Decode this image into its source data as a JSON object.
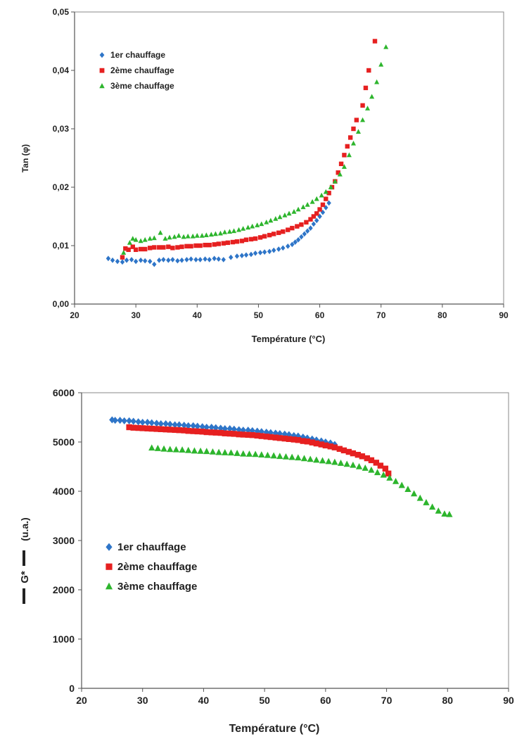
{
  "colors": {
    "series1": "#2E75C8",
    "series2": "#E62020",
    "series3": "#2DB52D"
  },
  "chart_data": [
    {
      "type": "scatter",
      "xlabel": "Température (°C)",
      "ylabel": "Tan (φ)",
      "xlim": [
        20,
        90
      ],
      "ylim": [
        0,
        0.05
      ],
      "x_ticks": [
        "20",
        "30",
        "40",
        "50",
        "60",
        "70",
        "80",
        "90"
      ],
      "y_ticks": [
        "0,00",
        "0,01",
        "0,02",
        "0,03",
        "0,04",
        "0,05"
      ],
      "grid": false,
      "legend_position": "top-left",
      "series": [
        {
          "name": "1er chauffage",
          "marker": "diamond",
          "x": [
            25.5,
            26.2,
            27.0,
            27.8,
            28.5,
            29.3,
            30.0,
            30.8,
            31.5,
            32.3,
            33.0,
            33.8,
            34.5,
            35.3,
            36.0,
            36.8,
            37.5,
            38.3,
            39.0,
            39.8,
            40.5,
            41.3,
            42.0,
            42.8,
            43.5,
            44.3,
            45.5,
            46.5,
            47.3,
            48.0,
            48.8,
            49.5,
            50.3,
            51.0,
            51.8,
            52.5,
            53.3,
            54.0,
            54.8,
            55.5,
            56.0,
            56.5,
            57.0,
            57.5,
            58.0,
            58.5,
            59.0,
            59.5,
            60.0,
            60.5,
            61.0,
            61.5
          ],
          "y": [
            0.0078,
            0.0075,
            0.0073,
            0.0072,
            0.0075,
            0.0076,
            0.0073,
            0.0075,
            0.0074,
            0.0073,
            0.0068,
            0.0075,
            0.0076,
            0.0075,
            0.0076,
            0.0074,
            0.0075,
            0.0076,
            0.0077,
            0.0076,
            0.0076,
            0.0077,
            0.0076,
            0.0078,
            0.0077,
            0.0076,
            0.008,
            0.0082,
            0.0083,
            0.0084,
            0.0085,
            0.0087,
            0.0088,
            0.0089,
            0.009,
            0.0092,
            0.0094,
            0.0096,
            0.0099,
            0.0102,
            0.0106,
            0.011,
            0.0115,
            0.012,
            0.0125,
            0.013,
            0.0137,
            0.0143,
            0.015,
            0.0157,
            0.0165,
            0.0173
          ]
        },
        {
          "name": "2ème chauffage",
          "marker": "square",
          "x": [
            27.8,
            28.3,
            28.8,
            29.5,
            30.0,
            30.8,
            31.5,
            32.3,
            33.0,
            33.8,
            34.5,
            35.3,
            36.0,
            36.8,
            37.5,
            38.3,
            39.0,
            39.8,
            40.5,
            41.3,
            42.0,
            42.8,
            43.5,
            44.3,
            45.0,
            45.8,
            46.5,
            47.3,
            48.0,
            48.8,
            49.5,
            50.3,
            51.0,
            51.8,
            52.5,
            53.3,
            54.0,
            54.8,
            55.5,
            56.3,
            57.0,
            57.8,
            58.5,
            59.0,
            59.5,
            60.0,
            60.5,
            61.0,
            61.5,
            62.0,
            62.5,
            63.0,
            63.5,
            64.0,
            64.5,
            65.0,
            65.5,
            66.0,
            67.0,
            67.5,
            68.0,
            69.0
          ],
          "y": [
            0.008,
            0.0095,
            0.0093,
            0.0098,
            0.0093,
            0.0094,
            0.0094,
            0.0096,
            0.0097,
            0.0097,
            0.0097,
            0.0098,
            0.0096,
            0.0097,
            0.0098,
            0.0099,
            0.0099,
            0.01,
            0.01,
            0.0101,
            0.0101,
            0.0102,
            0.0103,
            0.0104,
            0.0105,
            0.0106,
            0.0107,
            0.0108,
            0.011,
            0.0111,
            0.0112,
            0.0114,
            0.0116,
            0.0118,
            0.012,
            0.0122,
            0.0124,
            0.0127,
            0.013,
            0.0133,
            0.0136,
            0.014,
            0.0145,
            0.015,
            0.0155,
            0.0162,
            0.017,
            0.018,
            0.019,
            0.02,
            0.021,
            0.0225,
            0.024,
            0.0255,
            0.027,
            0.0285,
            0.03,
            0.0315,
            0.034,
            0.037,
            0.04,
            0.045
          ]
        },
        {
          "name": "3ème chauffage",
          "marker": "triangle",
          "x": [
            28.0,
            29.0,
            29.5,
            30.0,
            30.8,
            31.5,
            32.3,
            33.0,
            34.0,
            34.8,
            35.5,
            36.3,
            37.0,
            37.8,
            38.5,
            39.3,
            40.0,
            40.8,
            41.5,
            42.3,
            43.0,
            43.8,
            44.5,
            45.3,
            46.0,
            46.8,
            47.5,
            48.3,
            49.0,
            49.8,
            50.5,
            51.3,
            52.0,
            52.8,
            53.5,
            54.3,
            55.0,
            55.8,
            56.5,
            57.3,
            58.0,
            58.8,
            59.5,
            60.3,
            61.0,
            61.8,
            62.5,
            63.3,
            64.0,
            64.8,
            65.5,
            66.3,
            67.0,
            67.8,
            68.5,
            69.3,
            70.0,
            70.8
          ],
          "y": [
            0.0088,
            0.0105,
            0.0112,
            0.011,
            0.0108,
            0.011,
            0.0112,
            0.0113,
            0.0122,
            0.0112,
            0.0114,
            0.0115,
            0.0117,
            0.0115,
            0.0116,
            0.0116,
            0.0117,
            0.0117,
            0.0118,
            0.0119,
            0.012,
            0.0121,
            0.0123,
            0.0124,
            0.0125,
            0.0127,
            0.0129,
            0.0131,
            0.0133,
            0.0135,
            0.0137,
            0.014,
            0.0143,
            0.0146,
            0.0149,
            0.0152,
            0.0155,
            0.0158,
            0.0162,
            0.0166,
            0.017,
            0.0175,
            0.018,
            0.0186,
            0.0192,
            0.02,
            0.021,
            0.0222,
            0.0235,
            0.0255,
            0.0275,
            0.0295,
            0.0315,
            0.0335,
            0.0355,
            0.038,
            0.041,
            0.044
          ]
        }
      ]
    },
    {
      "type": "scatter",
      "xlabel": "Température (°C)",
      "ylabel": "G*",
      "ylabel_unit": "(u.a.)",
      "xlim": [
        20,
        90
      ],
      "ylim": [
        0,
        6000
      ],
      "x_ticks": [
        "20",
        "30",
        "40",
        "50",
        "60",
        "70",
        "80",
        "90"
      ],
      "y_ticks": [
        "0",
        "1000",
        "2000",
        "3000",
        "4000",
        "5000",
        "6000"
      ],
      "grid": false,
      "legend_position": "center-left",
      "series": [
        {
          "name": "1er chauffage",
          "marker": "diamond",
          "x": [
            25.0,
            25.5,
            26.3,
            27.0,
            27.8,
            28.5,
            29.3,
            30.0,
            30.8,
            31.5,
            32.3,
            33.0,
            33.8,
            34.5,
            35.3,
            36.0,
            36.8,
            37.5,
            38.3,
            39.0,
            39.8,
            40.5,
            41.3,
            42.0,
            42.8,
            43.5,
            44.3,
            45.0,
            45.8,
            46.5,
            47.3,
            48.0,
            48.8,
            49.5,
            50.3,
            51.0,
            51.8,
            52.5,
            53.3,
            54.0,
            54.8,
            55.5,
            56.3,
            57.0,
            57.8,
            58.5,
            59.3,
            60.0,
            60.8,
            61.5
          ],
          "y": [
            5450,
            5440,
            5440,
            5430,
            5430,
            5420,
            5410,
            5400,
            5400,
            5390,
            5380,
            5370,
            5370,
            5360,
            5350,
            5350,
            5340,
            5330,
            5330,
            5320,
            5310,
            5300,
            5300,
            5290,
            5280,
            5270,
            5270,
            5260,
            5250,
            5240,
            5240,
            5230,
            5220,
            5210,
            5200,
            5190,
            5180,
            5170,
            5160,
            5150,
            5130,
            5120,
            5100,
            5080,
            5060,
            5040,
            5020,
            5000,
            4980,
            4950
          ]
        },
        {
          "name": "2ème chauffage",
          "marker": "square",
          "x": [
            27.8,
            28.5,
            29.3,
            30.0,
            30.8,
            31.5,
            32.3,
            33.0,
            33.8,
            34.5,
            35.3,
            36.0,
            36.8,
            37.5,
            38.3,
            39.0,
            39.8,
            40.5,
            41.3,
            42.0,
            42.8,
            43.5,
            44.3,
            45.0,
            45.8,
            46.5,
            47.3,
            48.0,
            48.8,
            49.5,
            50.3,
            51.0,
            51.8,
            52.5,
            53.3,
            54.0,
            54.8,
            55.5,
            56.3,
            57.0,
            57.8,
            58.5,
            59.3,
            60.0,
            60.8,
            61.5,
            62.3,
            63.0,
            63.8,
            64.5,
            65.3,
            66.0,
            66.8,
            67.5,
            68.3,
            69.0,
            69.8,
            70.3
          ],
          "y": [
            5300,
            5290,
            5285,
            5280,
            5275,
            5270,
            5265,
            5260,
            5255,
            5250,
            5245,
            5240,
            5235,
            5225,
            5220,
            5215,
            5210,
            5200,
            5195,
            5190,
            5185,
            5175,
            5170,
            5165,
            5155,
            5150,
            5145,
            5140,
            5130,
            5120,
            5110,
            5100,
            5090,
            5080,
            5070,
            5060,
            5050,
            5040,
            5020,
            5010,
            4990,
            4970,
            4950,
            4930,
            4910,
            4890,
            4860,
            4830,
            4800,
            4770,
            4740,
            4710,
            4670,
            4630,
            4580,
            4520,
            4460,
            4360
          ]
        },
        {
          "name": "3ème chauffage",
          "marker": "triangle",
          "x": [
            31.5,
            32.5,
            33.5,
            34.5,
            35.5,
            36.5,
            37.5,
            38.5,
            39.5,
            40.5,
            41.5,
            42.5,
            43.5,
            44.5,
            45.5,
            46.5,
            47.5,
            48.5,
            49.5,
            50.5,
            51.5,
            52.5,
            53.5,
            54.5,
            55.5,
            56.5,
            57.5,
            58.5,
            59.5,
            60.5,
            61.5,
            62.5,
            63.5,
            64.5,
            65.5,
            66.5,
            67.5,
            68.5,
            69.5,
            70.5,
            71.5,
            72.5,
            73.5,
            74.5,
            75.5,
            76.5,
            77.5,
            78.5,
            79.5,
            80.3
          ],
          "y": [
            4880,
            4870,
            4860,
            4850,
            4845,
            4840,
            4830,
            4820,
            4815,
            4810,
            4800,
            4790,
            4785,
            4780,
            4770,
            4760,
            4755,
            4750,
            4740,
            4730,
            4720,
            4710,
            4700,
            4690,
            4680,
            4665,
            4650,
            4635,
            4620,
            4605,
            4590,
            4570,
            4550,
            4530,
            4500,
            4470,
            4430,
            4380,
            4330,
            4270,
            4200,
            4120,
            4040,
            3950,
            3860,
            3770,
            3680,
            3600,
            3540,
            3530
          ]
        }
      ]
    }
  ]
}
